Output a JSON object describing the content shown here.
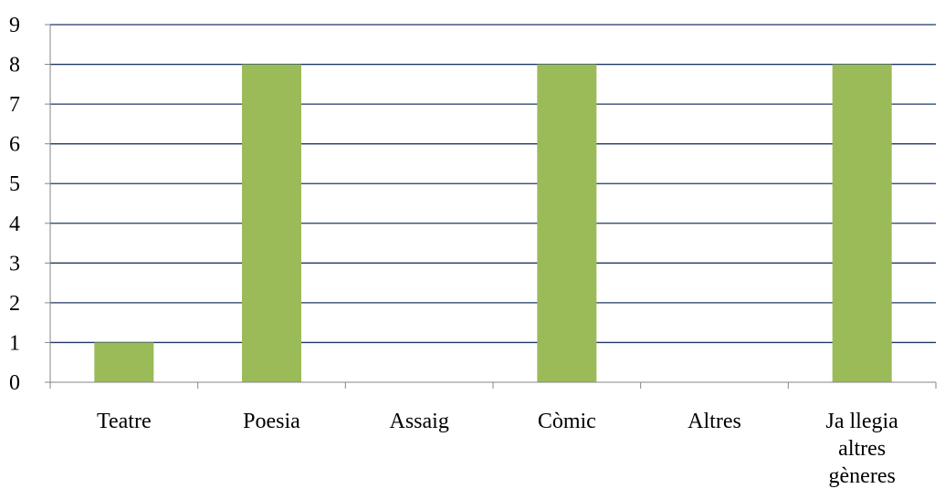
{
  "chart_data": {
    "type": "bar",
    "categories": [
      "Teatre",
      "Poesia",
      "Assaig",
      "Còmic",
      "Altres",
      "Ja llegia altres gèneres"
    ],
    "category_label_lines": [
      [
        "Teatre"
      ],
      [
        "Poesia"
      ],
      [
        "Assaig"
      ],
      [
        "Còmic"
      ],
      [
        "Altres"
      ],
      [
        "Ja llegia",
        "altres",
        "gèneres"
      ]
    ],
    "values": [
      1,
      8,
      0,
      8,
      0,
      8
    ],
    "ylim": [
      0,
      9
    ],
    "yticks": [
      0,
      1,
      2,
      3,
      4,
      5,
      6,
      7,
      8,
      9
    ],
    "grid": true,
    "legend": "none",
    "colors": {
      "bar": "#9BBB59",
      "grid": "#1F3864",
      "axis": "#868686"
    }
  }
}
